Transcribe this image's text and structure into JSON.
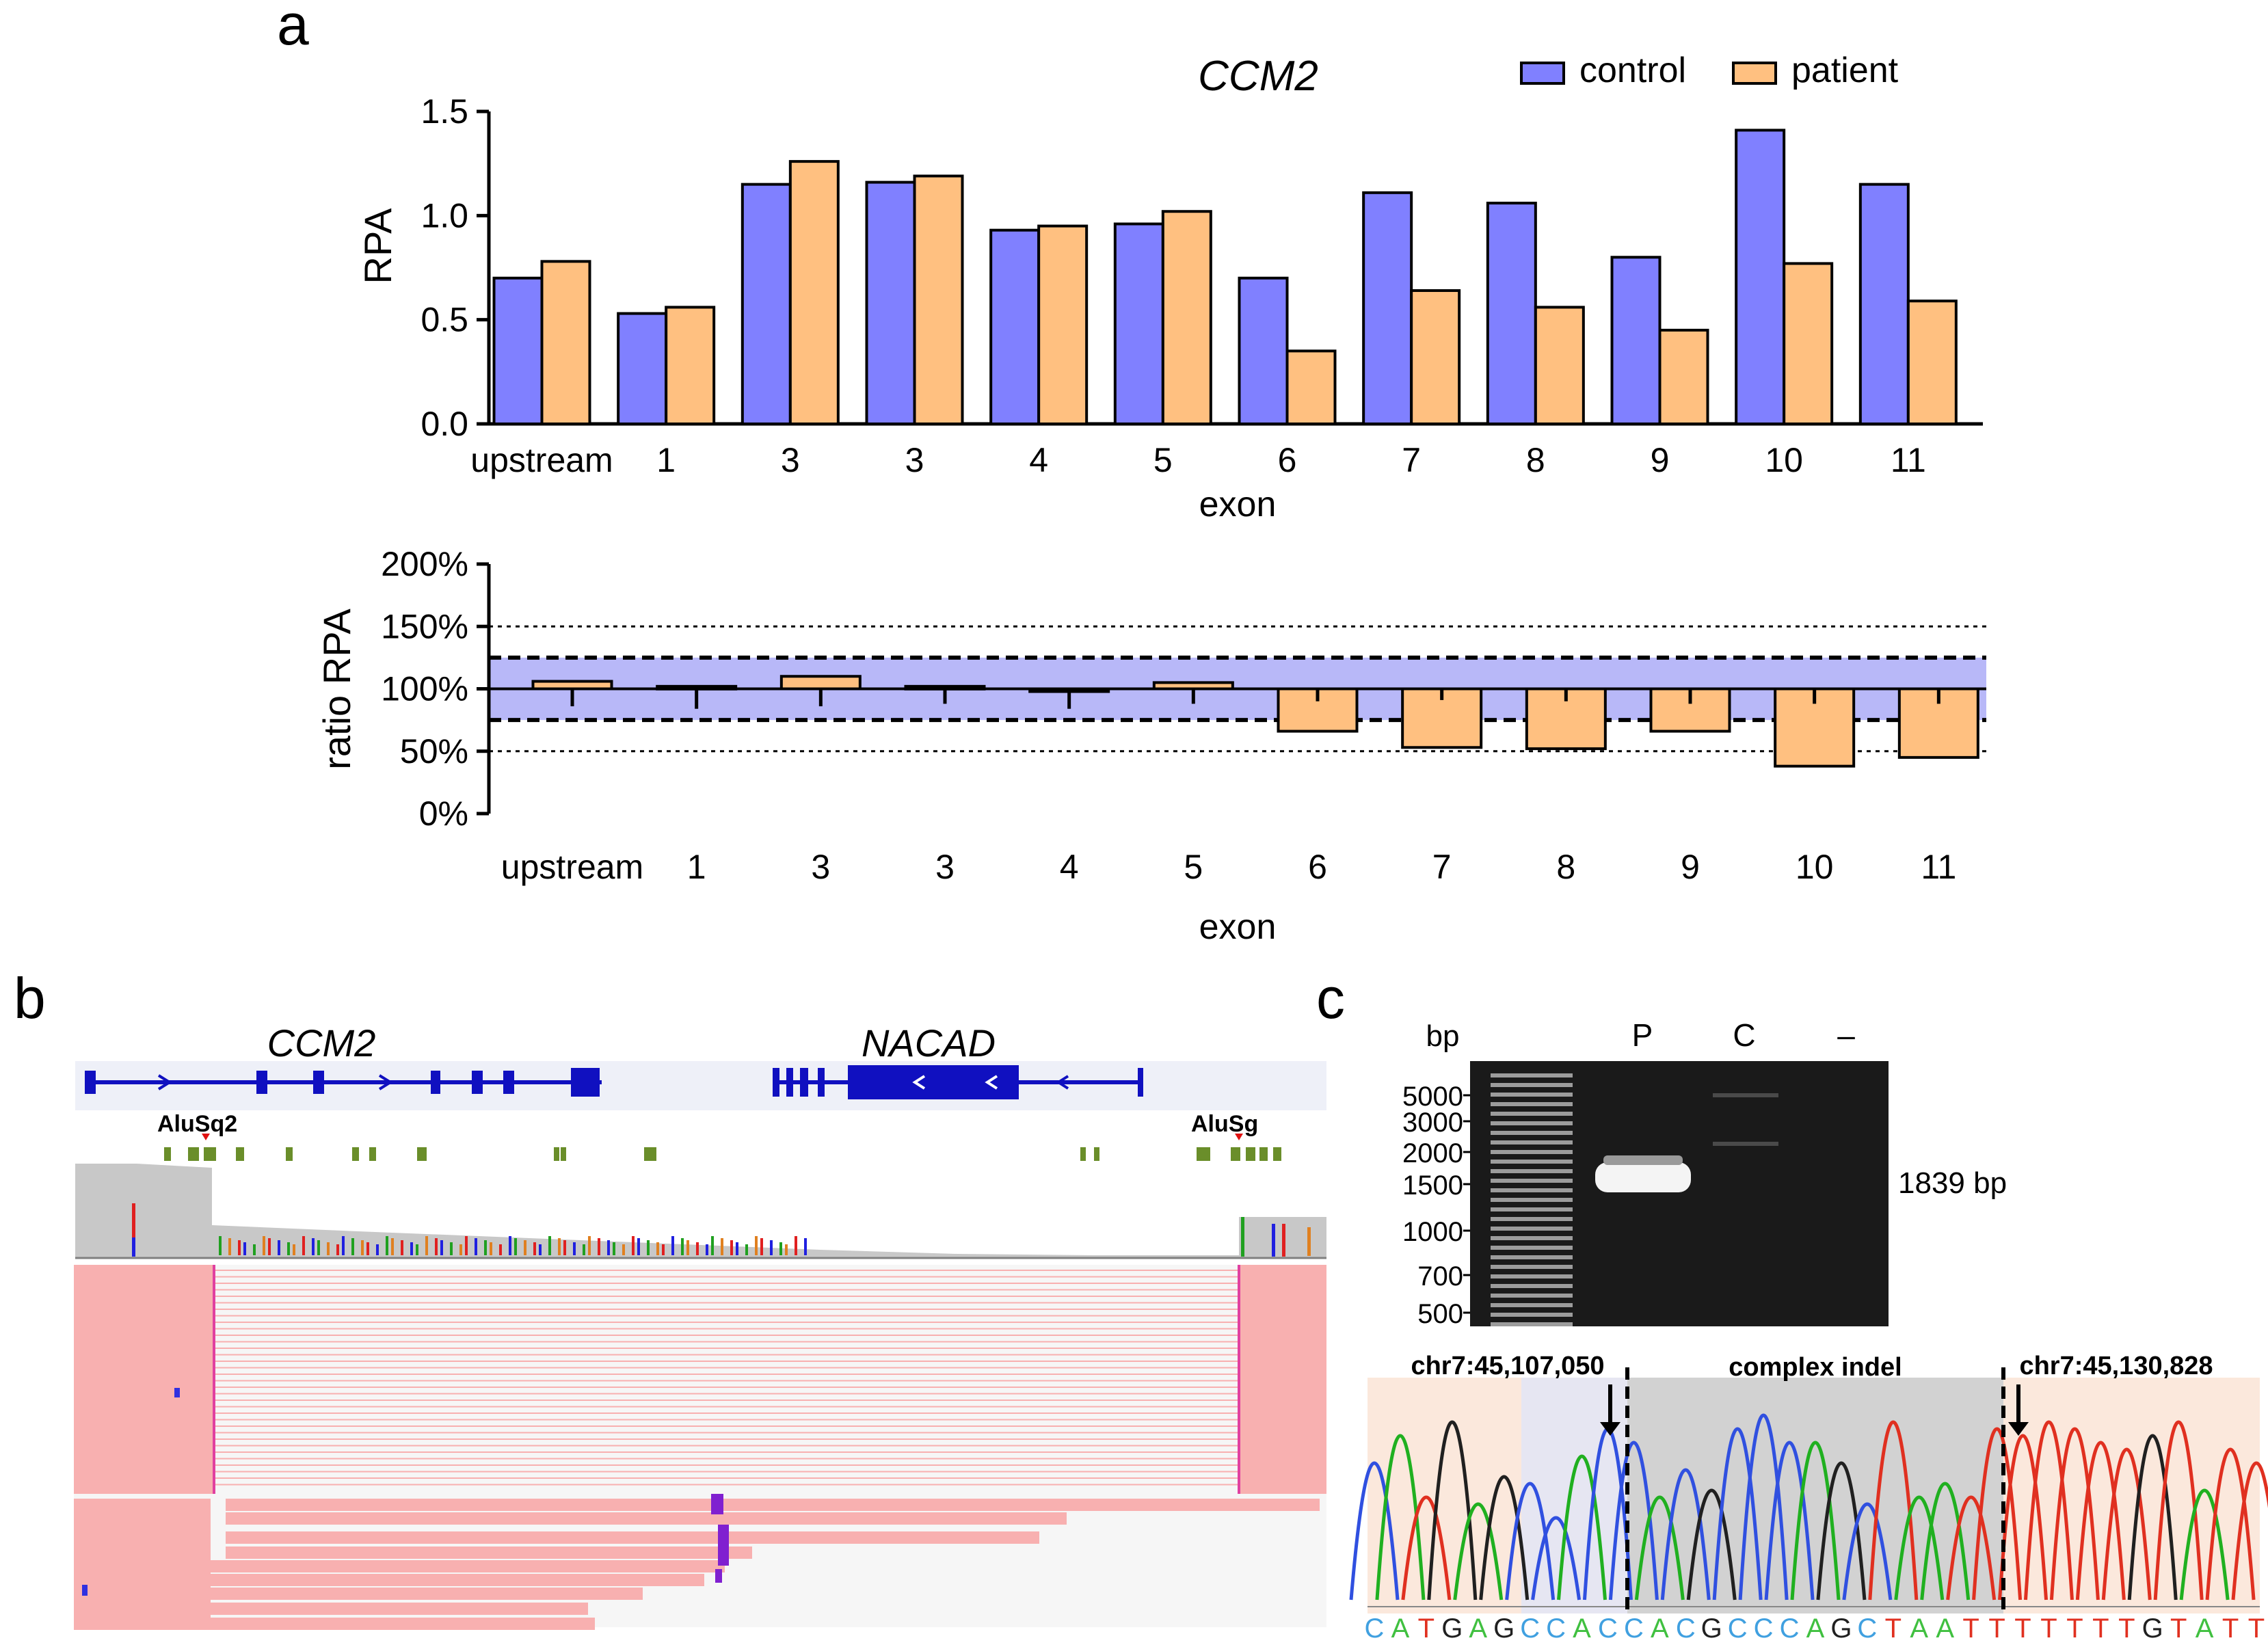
{
  "panel_labels": {
    "a": "a",
    "b": "b",
    "c": "c"
  },
  "chart_data": [
    {
      "id": "rpa",
      "type": "bar",
      "title": "CCM2",
      "xlabel": "exon",
      "ylabel": "RPA",
      "ylim": [
        0,
        1.5
      ],
      "yticks": [
        "0.0",
        "0.5",
        "1.0",
        "1.5"
      ],
      "categories": [
        "upstream",
        "1",
        "3",
        "3",
        "4",
        "5",
        "6",
        "7",
        "8",
        "9",
        "10",
        "11"
      ],
      "legend_position": "top-right",
      "series": [
        {
          "name": "control",
          "color": "#8080ff",
          "values": [
            0.7,
            0.53,
            1.15,
            1.16,
            0.93,
            0.96,
            0.7,
            1.11,
            1.06,
            0.8,
            1.41,
            1.15
          ]
        },
        {
          "name": "patient",
          "color": "#ffc080",
          "values": [
            0.78,
            0.56,
            1.26,
            1.19,
            0.95,
            1.02,
            0.35,
            0.64,
            0.56,
            0.45,
            0.77,
            0.59
          ]
        }
      ]
    },
    {
      "id": "ratio",
      "type": "bar",
      "xlabel": "exon",
      "ylabel": "ratio RPA",
      "ylim": [
        0,
        200
      ],
      "yticks": [
        "0%",
        "50%",
        "100%",
        "150%",
        "200%"
      ],
      "categories": [
        "upstream",
        "1",
        "3",
        "3",
        "4",
        "5",
        "6",
        "7",
        "8",
        "9",
        "10",
        "11"
      ],
      "color": "#ffc080",
      "normal_band": [
        75,
        125
      ],
      "reference_lines": [
        50,
        150
      ],
      "baseline": 100,
      "values": [
        106,
        102,
        110,
        102,
        100,
        105,
        66,
        53,
        52,
        66,
        38,
        45
      ],
      "error_bars": [
        14,
        16,
        14,
        12,
        16,
        12,
        10,
        9,
        10,
        12,
        12,
        12
      ]
    }
  ],
  "panel_b": {
    "gene_left": "CCM2",
    "gene_right": "NACAD",
    "repeat_left": "AluSq2",
    "repeat_right": "AluSg"
  },
  "panel_c": {
    "gel": {
      "bp_header": "bp",
      "lane_labels": [
        "P",
        "C",
        "–"
      ],
      "ladder": [
        "5000",
        "3000",
        "2000",
        "1500",
        "1000",
        "700",
        "500"
      ],
      "band_label": "1839 bp"
    },
    "chromatogram": {
      "left_breakpoint": "chr7:45,107,050",
      "middle_label": "complex indel",
      "right_breakpoint": "chr7:45,130,828",
      "sequence": "CATGAGCCACCACGCCCAGCTAATTTTTTTGTATT"
    }
  }
}
